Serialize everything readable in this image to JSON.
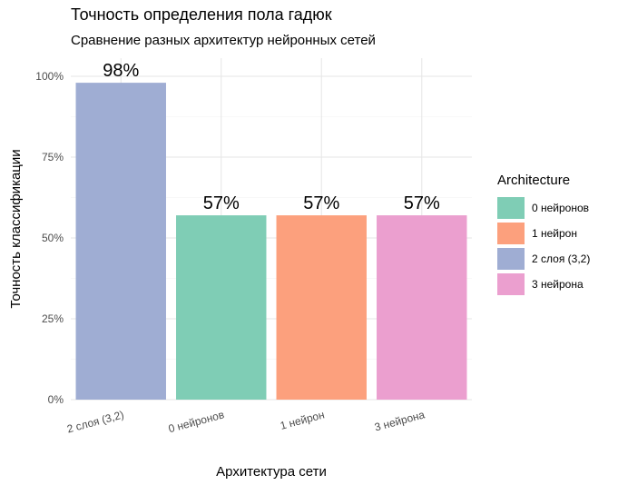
{
  "chart_data": {
    "type": "bar",
    "title": "Точность определения пола гадюк",
    "subtitle": "Сравнение разных архитектур нейронных сетей",
    "xlabel": "Архитектура сети",
    "ylabel": "Точность классификации",
    "categories": [
      "2 слоя (3,2)",
      "0 нейронов",
      "1 нейрон",
      "3 нейрона"
    ],
    "values": [
      0.98,
      0.57,
      0.57,
      0.57
    ],
    "data_labels": [
      "98%",
      "57%",
      "57%",
      "57%"
    ],
    "bar_colors": [
      "#9fadd3",
      "#7fcdb5",
      "#fca07d",
      "#eb9fcf"
    ],
    "ylim": [
      0,
      1
    ],
    "yticks": [
      0,
      0.25,
      0.5,
      0.75,
      1.0
    ],
    "ytick_labels": [
      "0%",
      "25%",
      "50%",
      "75%",
      "100%"
    ],
    "grid": true,
    "legend": {
      "title": "Architecture",
      "position": "right",
      "items": [
        {
          "label": "0 нейронов",
          "color": "#7fcdb5"
        },
        {
          "label": "1 нейрон",
          "color": "#fca07d"
        },
        {
          "label": "2 слоя (3,2)",
          "color": "#9fadd3"
        },
        {
          "label": "3 нейрона",
          "color": "#eb9fcf"
        }
      ]
    }
  }
}
